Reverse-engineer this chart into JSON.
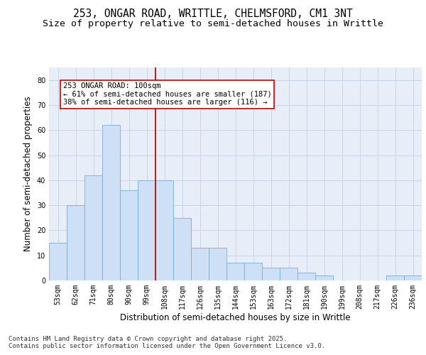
{
  "title_line1": "253, ONGAR ROAD, WRITTLE, CHELMSFORD, CM1 3NT",
  "title_line2": "Size of property relative to semi-detached houses in Writtle",
  "xlabel": "Distribution of semi-detached houses by size in Writtle",
  "ylabel": "Number of semi-detached properties",
  "categories": [
    "53sqm",
    "62sqm",
    "71sqm",
    "80sqm",
    "90sqm",
    "99sqm",
    "108sqm",
    "117sqm",
    "126sqm",
    "135sqm",
    "144sqm",
    "153sqm",
    "163sqm",
    "172sqm",
    "181sqm",
    "190sqm",
    "199sqm",
    "208sqm",
    "217sqm",
    "226sqm",
    "236sqm"
  ],
  "values": [
    15,
    30,
    42,
    62,
    36,
    40,
    40,
    25,
    13,
    13,
    7,
    7,
    5,
    5,
    3,
    2,
    0,
    0,
    0,
    2,
    2
  ],
  "bar_color": "#cde0f5",
  "bar_edge_color": "#7aabda",
  "grid_color": "#c8d4e8",
  "background_color": "#e8eef8",
  "vline_color": "#cc0000",
  "vline_pos": 5.5,
  "annotation_text": "253 ONGAR ROAD: 100sqm\n← 61% of semi-detached houses are smaller (187)\n38% of semi-detached houses are larger (116) →",
  "annotation_box_color": "#ffffff",
  "annotation_box_edge": "#cc0000",
  "ylim": [
    0,
    85
  ],
  "yticks": [
    0,
    10,
    20,
    30,
    40,
    50,
    60,
    70,
    80
  ],
  "footer_text": "Contains HM Land Registry data © Crown copyright and database right 2025.\nContains public sector information licensed under the Open Government Licence v3.0.",
  "title_fontsize": 10.5,
  "subtitle_fontsize": 9.5,
  "axis_label_fontsize": 8.5,
  "tick_fontsize": 7,
  "footer_fontsize": 6.5,
  "annotation_fontsize": 7.5
}
